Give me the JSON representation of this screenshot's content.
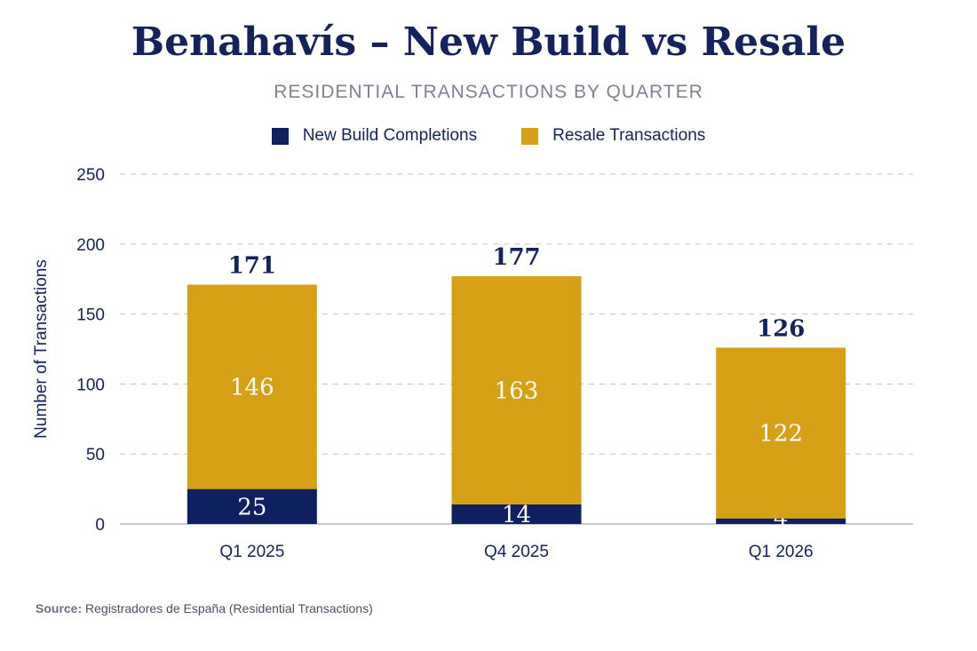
{
  "colors": {
    "new_build": "#0f2060",
    "resale": "#d6a116",
    "text": "#14225e",
    "grid": "#c9ccd6"
  },
  "chart_data": {
    "type": "bar",
    "stacked": true,
    "title": "Benahavís – New Build vs Resale",
    "subtitle": "RESIDENTIAL TRANSACTIONS BY QUARTER",
    "ylabel": "Number of Transactions",
    "xlabel": "",
    "ylim": [
      0,
      250
    ],
    "yticks": [
      0,
      50,
      100,
      150,
      200,
      250
    ],
    "grid": true,
    "legend_position": "top",
    "categories": [
      "Q1 2025",
      "Q4 2025",
      "Q1 2026"
    ],
    "series": [
      {
        "name": "New Build Completions",
        "values": [
          25,
          14,
          4
        ]
      },
      {
        "name": "Resale Transactions",
        "values": [
          146,
          163,
          122
        ]
      }
    ],
    "totals": [
      171,
      177,
      126
    ]
  },
  "source": {
    "label": "Source:",
    "text": "Registradores de España (Residential Transactions)"
  }
}
